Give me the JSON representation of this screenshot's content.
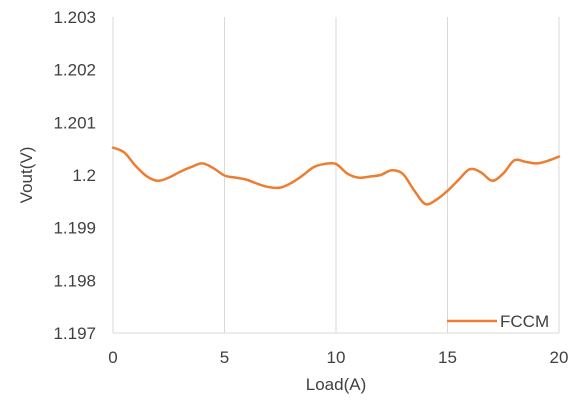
{
  "chart_data": {
    "type": "line",
    "title": "",
    "xlabel": "Load(A)",
    "ylabel": "Vout(V)",
    "xlim": [
      0,
      20
    ],
    "ylim": [
      1.197,
      1.203
    ],
    "x_ticks": [
      0,
      5,
      10,
      15,
      20
    ],
    "x_tick_labels": [
      "0",
      "5",
      "10",
      "15",
      "20"
    ],
    "y_ticks": [
      1.197,
      1.198,
      1.199,
      1.2,
      1.201,
      1.202,
      1.203
    ],
    "y_tick_labels": [
      "1.197",
      "1.198",
      "1.199",
      "1.2",
      "1.201",
      "1.202",
      "1.203"
    ],
    "grid": "vertical",
    "legend": "bottom-right",
    "series": [
      {
        "name": "FCCM",
        "color": "#ED7D31",
        "x": [
          0,
          0.5,
          1,
          1.5,
          2,
          2.5,
          3,
          3.5,
          4,
          4.5,
          5,
          5.5,
          6,
          6.5,
          7,
          7.5,
          8,
          8.5,
          9,
          9.5,
          10,
          10.5,
          11,
          11.5,
          12,
          12.5,
          13,
          13.5,
          14,
          14.5,
          15,
          15.5,
          16,
          16.5,
          17,
          17.5,
          18,
          18.5,
          19,
          19.5,
          20
        ],
        "y": [
          1.20052,
          1.20043,
          1.20018,
          1.19998,
          1.19989,
          1.19995,
          1.20006,
          1.20015,
          1.20022,
          1.20013,
          1.19999,
          1.19995,
          1.19991,
          1.19983,
          1.19977,
          1.19976,
          1.19985,
          1.19999,
          1.20015,
          1.20021,
          1.20021,
          1.20003,
          1.19995,
          1.19997,
          1.2,
          1.20009,
          1.20002,
          1.19971,
          1.19945,
          1.19953,
          1.1997,
          1.19991,
          1.20011,
          1.20005,
          1.19989,
          1.20003,
          1.20028,
          1.20025,
          1.20022,
          1.20027,
          1.20035
        ]
      }
    ]
  }
}
